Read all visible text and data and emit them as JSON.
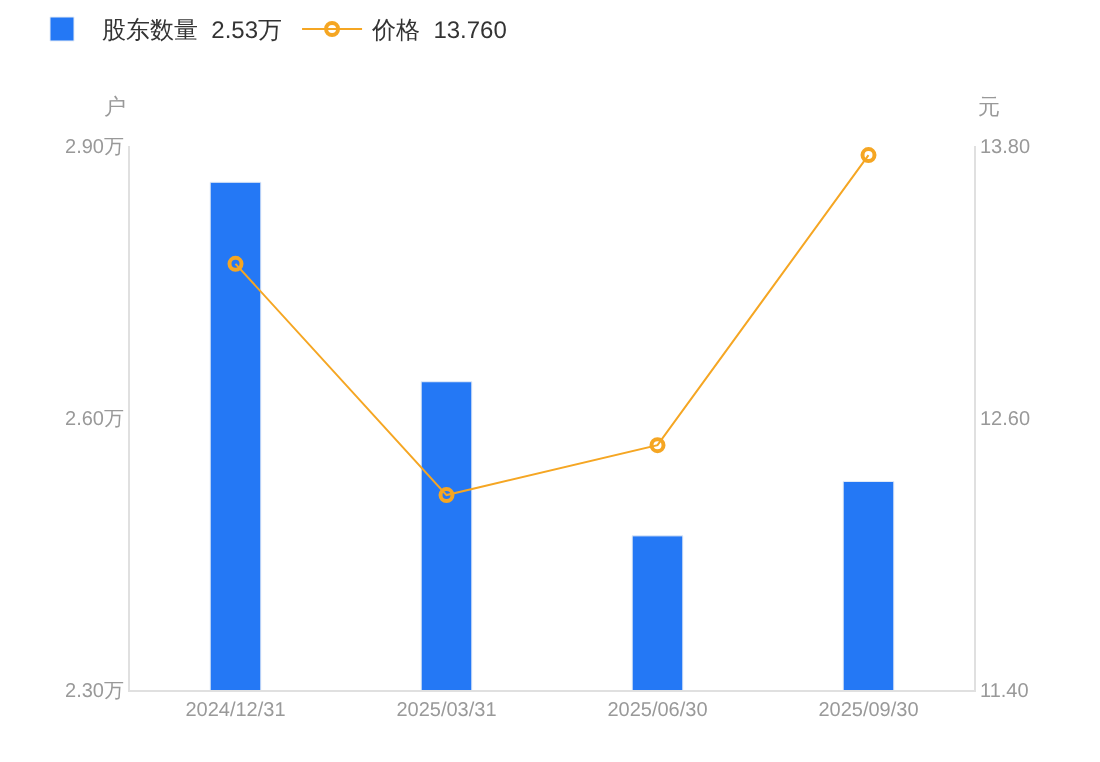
{
  "chart_data": {
    "type": "bar",
    "categories": [
      "2024/12/31",
      "2025/03/31",
      "2025/06/30",
      "2025/09/30"
    ],
    "series": [
      {
        "name": "股东数量  2.53万",
        "color": "#2478f5",
        "values": [
          2.86,
          2.64,
          2.47,
          2.53
        ]
      },
      {
        "name": "价格  13.760",
        "type": "line",
        "axis": "y2",
        "color": "#f5a623",
        "values": [
          13.28,
          12.26,
          12.48,
          13.76
        ]
      }
    ],
    "ylabel": "户",
    "y2label": "元",
    "ylim": [
      2.3,
      2.9
    ],
    "yticks": [
      {
        "value": 2.3,
        "label": "2.30万"
      },
      {
        "value": 2.6,
        "label": "2.60万"
      },
      {
        "value": 2.9,
        "label": "2.90万"
      }
    ],
    "y2lim": [
      11.4,
      13.8
    ],
    "y2ticks": [
      {
        "value": 11.4,
        "label": "11.40"
      },
      {
        "value": 12.6,
        "label": "12.60"
      },
      {
        "value": 13.8,
        "label": "13.80"
      }
    ],
    "legend": "top left",
    "marker": "circle"
  }
}
